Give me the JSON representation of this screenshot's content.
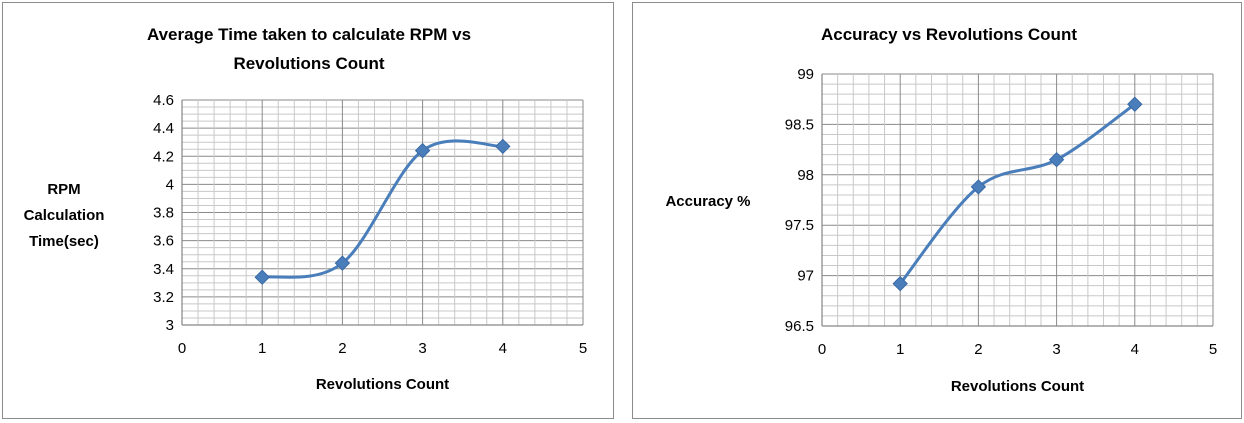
{
  "chart_data": [
    {
      "type": "line",
      "title_lines": [
        "Average Time taken to calculate RPM vs",
        "Revolutions Count"
      ],
      "xlabel": "Revolutions Count",
      "ylabel_lines": [
        "RPM",
        "Calculation",
        "Time(sec)"
      ],
      "x": [
        1,
        2,
        3,
        4
      ],
      "y": [
        3.34,
        3.44,
        4.24,
        4.27
      ],
      "xlim": [
        0,
        5
      ],
      "ylim": [
        3,
        4.6
      ],
      "xticks": [
        "0",
        "1",
        "2",
        "3",
        "4",
        "5"
      ],
      "yticks": [
        "3",
        "3.2",
        "3.4",
        "3.6",
        "3.8",
        "4",
        "4.2",
        "4.4",
        "4.6"
      ],
      "smooth": true,
      "grid": true,
      "marker": "diamond",
      "color": "#4a7ebb"
    },
    {
      "type": "line",
      "title_lines": [
        "Accuracy vs Revolutions Count"
      ],
      "xlabel": "Revolutions Count",
      "ylabel_lines": [
        "Accuracy %"
      ],
      "x": [
        1,
        2,
        3,
        4
      ],
      "y": [
        96.92,
        97.88,
        98.15,
        98.7
      ],
      "xlim": [
        0,
        5
      ],
      "ylim": [
        96.5,
        99
      ],
      "xticks": [
        "0",
        "1",
        "2",
        "3",
        "4",
        "5"
      ],
      "yticks": [
        "96.5",
        "97",
        "97.5",
        "98",
        "98.5",
        "99"
      ],
      "smooth": true,
      "grid": true,
      "marker": "diamond",
      "color": "#4a7ebb"
    }
  ]
}
